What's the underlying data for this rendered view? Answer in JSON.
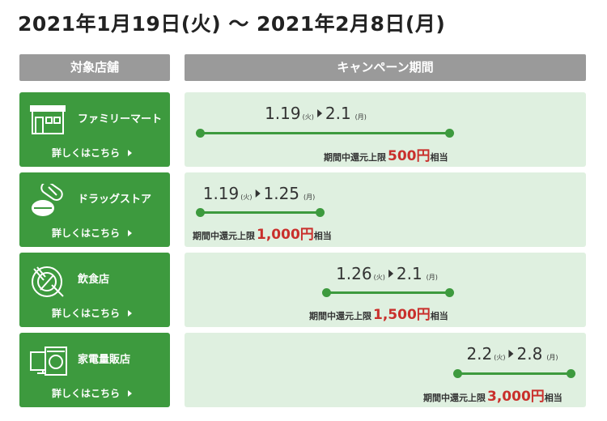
{
  "title": "2021年1月19日(火) 〜 2021年2月8日(月)",
  "headers": {
    "stores": "対象店舗",
    "period": "キャンペーン期間"
  },
  "rows": [
    {
      "store": "ファミリーマート",
      "link": "詳しくはこちら",
      "start": "1.19",
      "start_day": "(火)",
      "end": "2.1",
      "end_day": "(月)",
      "note": "期間中還元上限",
      "amount": "500円",
      "suffix": "相当"
    },
    {
      "store": "ドラッグストア",
      "link": "詳しくはこちら",
      "start": "1.19",
      "start_day": "(火)",
      "end": "1.25",
      "end_day": "(月)",
      "note": "期間中還元上限",
      "amount": "1,000円",
      "suffix": "相当"
    },
    {
      "store": "飲食店",
      "link": "詳しくはこちら",
      "start": "1.26",
      "start_day": "(火)",
      "end": "2.1",
      "end_day": "(月)",
      "note": "期間中還元上限",
      "amount": "1,500円",
      "suffix": "相当"
    },
    {
      "store": "家電量販店",
      "link": "詳しくはこちら",
      "start": "2.2",
      "start_day": "(火)",
      "end": "2.8",
      "end_day": "(月)",
      "note": "期間中還元上限",
      "amount": "3,000円",
      "suffix": "相当"
    }
  ]
}
